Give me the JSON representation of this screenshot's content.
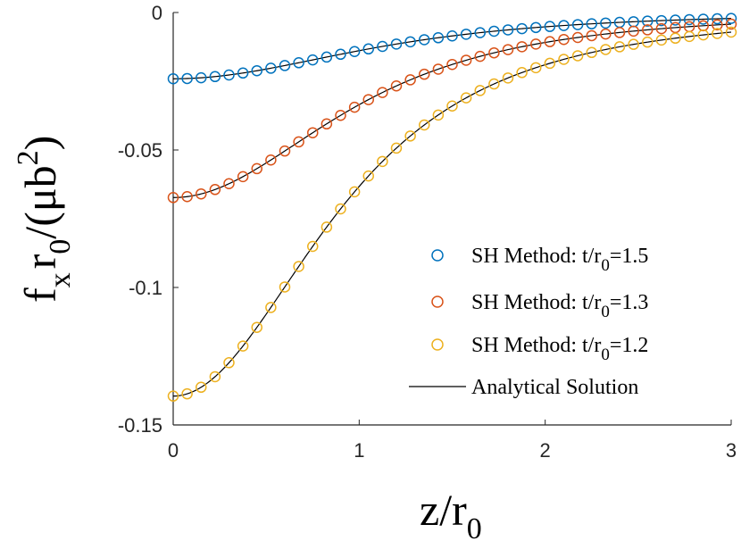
{
  "chart_data": {
    "type": "line",
    "xlim": [
      0,
      3
    ],
    "ylim": [
      -0.15,
      0
    ],
    "xticks": [
      "0",
      "1",
      "2",
      "3"
    ],
    "yticks": [
      "0",
      "-0.05",
      "-0.1",
      "-0.15"
    ],
    "xlabel": {
      "main": "z/r",
      "sub": "0"
    },
    "ylabel": {
      "f": "f",
      "x": "x",
      "r": "r",
      "sub0": "0",
      "rest": "/(",
      "mu": "μ",
      "b": "b",
      "sup2": "2",
      "close": ")"
    },
    "series": [
      {
        "name": "SH Method: t/r0=1.5",
        "color": "#0072BD",
        "tv": "1.5",
        "A": -0.0241,
        "s": 1.5
      },
      {
        "name": "SH Method: t/r0=1.3",
        "color": "#D95319",
        "tv": "1.3",
        "A": -0.0673,
        "s": 1.3
      },
      {
        "name": "SH Method: t/r0=1.2",
        "color": "#EDB120",
        "tv": "1.2",
        "A": -0.1395,
        "s": 1.2
      }
    ],
    "analytical_label": "Analytical Solution",
    "legend": {
      "placement": "right",
      "prefix": "SH Method: t/r",
      "sub": "0",
      "eq": "="
    },
    "sample_step": 0.075
  }
}
